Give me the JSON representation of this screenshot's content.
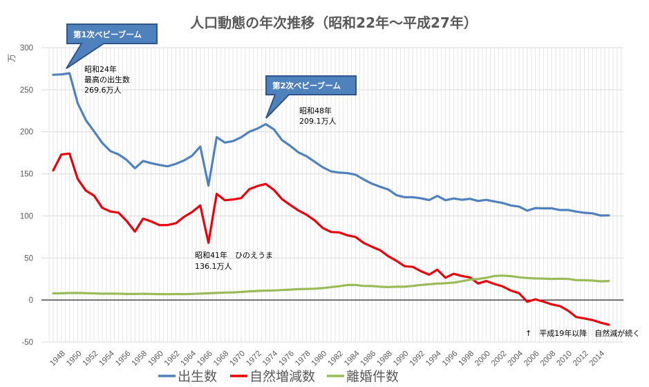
{
  "chart_data": {
    "type": "line",
    "title": "人口動態の年次推移（昭和22年～平成27年）",
    "ylabel": "万",
    "xlabel": "",
    "ylim": [
      -50,
      300
    ],
    "yticks": [
      -50,
      0,
      50,
      100,
      150,
      200,
      250,
      300
    ],
    "grid": true,
    "legend_position": "bottom",
    "x": [
      1947,
      1948,
      1949,
      1950,
      1951,
      1952,
      1953,
      1954,
      1955,
      1956,
      1957,
      1958,
      1959,
      1960,
      1961,
      1962,
      1963,
      1964,
      1965,
      1966,
      1967,
      1968,
      1969,
      1970,
      1971,
      1972,
      1973,
      1974,
      1975,
      1976,
      1977,
      1978,
      1979,
      1980,
      1981,
      1982,
      1983,
      1984,
      1985,
      1986,
      1987,
      1988,
      1989,
      1990,
      1991,
      1992,
      1993,
      1994,
      1995,
      1996,
      1997,
      1998,
      1999,
      2000,
      2001,
      2002,
      2003,
      2004,
      2005,
      2006,
      2007,
      2008,
      2009,
      2010,
      2011,
      2012,
      2013,
      2014,
      2015
    ],
    "xtick_labels": [
      "1948",
      "1950",
      "1952",
      "1954",
      "1956",
      "1958",
      "1960",
      "1962",
      "1964",
      "1966",
      "1968",
      "1970",
      "1972",
      "1974",
      "1976",
      "1978",
      "1980",
      "1982",
      "1984",
      "1986",
      "1988",
      "1990",
      "1992",
      "1994",
      "1996",
      "1998",
      "2000",
      "2002",
      "2004",
      "2006",
      "2008",
      "2010",
      "2012",
      "2014"
    ],
    "series": [
      {
        "name": "出生数",
        "color": "#4f81bd",
        "values": [
          267.8,
          268.2,
          269.6,
          233.8,
          213.8,
          200.5,
          186.8,
          177.0,
          173.1,
          166.5,
          156.7,
          165.3,
          162.6,
          160.6,
          158.9,
          161.9,
          165.9,
          171.7,
          182.4,
          136.1,
          193.6,
          187.2,
          188.9,
          193.4,
          200.1,
          203.9,
          209.1,
          203.0,
          190.1,
          183.3,
          175.5,
          170.9,
          164.3,
          157.7,
          152.9,
          151.5,
          150.9,
          149.0,
          143.2,
          138.3,
          134.7,
          131.4,
          124.7,
          122.2,
          122.3,
          120.9,
          118.8,
          123.8,
          118.7,
          120.7,
          119.2,
          120.3,
          117.8,
          119.1,
          117.1,
          115.4,
          112.4,
          111.1,
          106.3,
          109.3,
          109.0,
          109.1,
          107.0,
          107.1,
          105.1,
          103.7,
          103.0,
          100.4,
          100.6
        ]
      },
      {
        "name": "自然増減数",
        "color": "#e8000b",
        "values": [
          154.1,
          173.0,
          174.1,
          143.8,
          130.0,
          124.1,
          109.6,
          105.2,
          103.8,
          93.9,
          81.4,
          96.7,
          93.4,
          89.0,
          89.2,
          91.2,
          98.8,
          104.6,
          112.4,
          68.1,
          126.2,
          118.6,
          119.5,
          121.1,
          131.7,
          135.5,
          138.0,
          131.0,
          119.9,
          113.0,
          106.5,
          101.4,
          94.5,
          85.5,
          80.9,
          80.4,
          76.9,
          75.0,
          67.8,
          63.3,
          59.3,
          52.1,
          46.6,
          40.2,
          39.4,
          34.2,
          30.1,
          36.0,
          26.5,
          31.2,
          28.6,
          26.9,
          19.6,
          22.6,
          19.0,
          16.2,
          11.3,
          8.2,
          -2.1,
          0.8,
          -1.9,
          -5.1,
          -7.2,
          -12.6,
          -20.2,
          -21.9,
          -23.9,
          -26.9,
          -29.4
        ]
      },
      {
        "name": "離婚件数",
        "color": "#9bbb59",
        "values": [
          7.9,
          8.0,
          8.3,
          8.4,
          8.2,
          7.9,
          7.5,
          7.6,
          7.5,
          7.2,
          7.2,
          7.4,
          7.2,
          7.0,
          6.9,
          7.1,
          7.0,
          7.3,
          7.7,
          8.0,
          8.4,
          8.8,
          9.1,
          9.6,
          10.3,
          10.8,
          11.2,
          11.4,
          11.9,
          12.4,
          12.9,
          13.2,
          13.5,
          14.2,
          15.4,
          16.4,
          17.9,
          17.9,
          16.7,
          16.6,
          15.8,
          15.4,
          15.8,
          15.8,
          16.8,
          17.9,
          18.8,
          19.5,
          19.9,
          20.7,
          22.3,
          24.3,
          25.1,
          26.4,
          28.6,
          29.0,
          28.4,
          27.1,
          26.2,
          25.7,
          25.5,
          25.1,
          25.3,
          25.1,
          23.6,
          23.5,
          23.1,
          22.2,
          22.6
        ]
      }
    ],
    "annotations": {
      "callout1": "第1次ベビーブーム",
      "callout2": "第2次ベビーブーム",
      "peak1_line1": "昭和24年",
      "peak1_line2": "最高の出生数",
      "peak1_line3": "269.6万人",
      "peak2_line1": "昭和48年",
      "peak2_line2": "209.1万人",
      "hinoe_line1": "昭和41年　ひのえうま",
      "hinoe_line2": "136.1万人",
      "decline_note": "↑　平成19年以降　自然減が続く"
    }
  }
}
